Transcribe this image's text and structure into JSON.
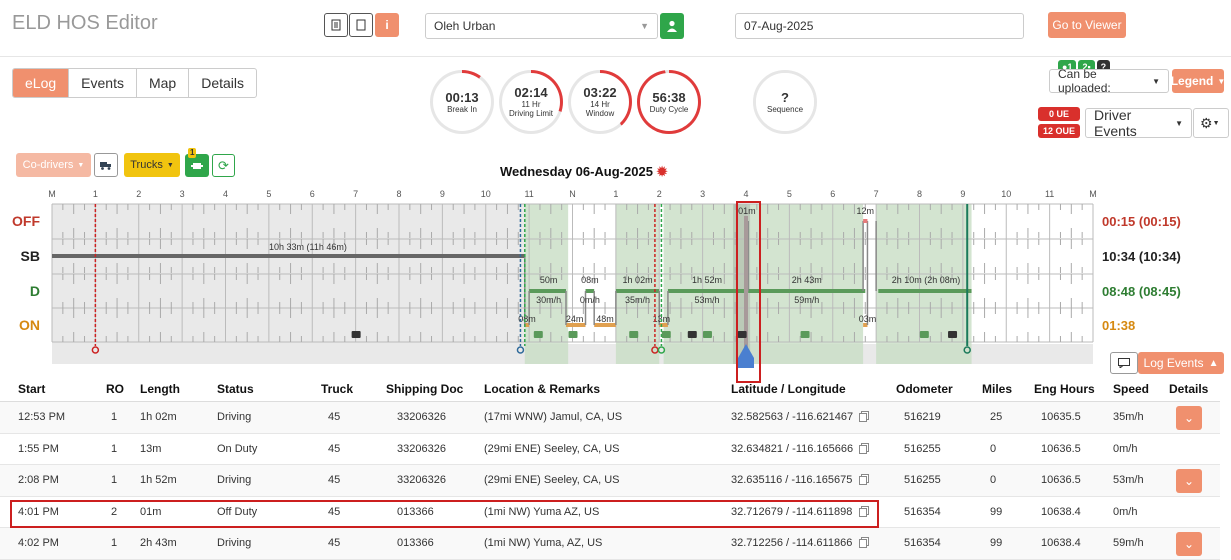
{
  "app_title": "ELD HOS Editor",
  "driver": {
    "name": "Oleh Urban"
  },
  "date_value": "07-Aug-2025",
  "go_to_viewer": "Go to Viewer",
  "info_icon": "i",
  "tabs": [
    {
      "label": "eLog",
      "active": true
    },
    {
      "label": "Events"
    },
    {
      "label": "Map"
    },
    {
      "label": "Details"
    }
  ],
  "gauges": [
    {
      "value": "00:13",
      "label1": "Break In",
      "label2": "",
      "fraction": 0.1,
      "color": "#e03b3b"
    },
    {
      "value": "02:14",
      "label1": "11 Hr",
      "label2": "Driving Limit",
      "fraction": 0.3,
      "color": "#e03b3b"
    },
    {
      "value": "03:22",
      "label1": "14 Hr",
      "label2": "Window",
      "fraction": 0.38,
      "color": "#e03b3b"
    },
    {
      "value": "56:38",
      "label1": "Duty Cycle",
      "label2": "",
      "fraction": 0.98,
      "color": "#e03b3b"
    },
    {
      "value": "?",
      "label1": "Sequence",
      "label2": "",
      "fraction": 0,
      "color": "#e03b3b"
    }
  ],
  "upload": {
    "label": "Can be uploaded:",
    "badge1": "1",
    "badge2": "2",
    "badge3": "?"
  },
  "legend": "Legend",
  "ue_badge": "0 UE",
  "oue_badge": "12 OUE",
  "driver_events": "Driver Events",
  "codrivers": "Co-drivers",
  "trucks": "Trucks",
  "truck_badge": "1",
  "day_title": "Wednesday 06-Aug-2025",
  "hour_labels": [
    "M",
    "1",
    "2",
    "3",
    "4",
    "5",
    "6",
    "7",
    "8",
    "9",
    "10",
    "11",
    "N",
    "1",
    "2",
    "3",
    "4",
    "5",
    "6",
    "7",
    "8",
    "9",
    "10",
    "11",
    "M"
  ],
  "status_rows": [
    {
      "label": "OFF",
      "color": "#c0392b",
      "total": "00:15 (00:15)"
    },
    {
      "label": "SB",
      "color": "#222222",
      "total": "10:34 (10:34)"
    },
    {
      "label": "D",
      "color": "#2e7d32",
      "total": "08:48 (08:45)"
    },
    {
      "label": "ON",
      "color": "#d68910",
      "total": "01:38"
    }
  ],
  "graph_labels": {
    "sb_main": "10h 33m (11h 46m)",
    "d_50m": "50m",
    "d_08m": "08m",
    "d_1h02m": "1h 02m",
    "d_1h52m": "1h 52m",
    "d_2h43m": "2h 43m",
    "d_2h10m": "2h 10m (2h 08m)",
    "s_30": "30m/h",
    "s_0": "0m/h",
    "s_35": "35m/h",
    "s_53": "53m/h",
    "s_59": "59m/h",
    "on_08": "08m",
    "on_24": "24m",
    "on_48": "48m",
    "on_13": "13m",
    "on_03": "03m",
    "off_01": "01m",
    "off_12": "12m"
  },
  "log_events_btn": "Log Events",
  "table": {
    "headers": [
      "Start",
      "RO",
      "Length",
      "Status",
      "Truck",
      "Shipping Doc",
      "Location & Remarks",
      "Latitude / Longitude",
      "Odometer",
      "Miles",
      "Eng Hours",
      "Speed",
      "Details"
    ],
    "rows": [
      {
        "start": "12:53 PM",
        "ro": "1",
        "length": "1h 02m",
        "status": "Driving",
        "truck": "45",
        "doc": "33206326",
        "loc": "(17mi WNW) Jamul, CA, US",
        "latlng": "32.582563 / -116.621467",
        "odo": "516219",
        "miles": "25",
        "eng": "10635.5",
        "speed": "35m/h",
        "details": true
      },
      {
        "start": "1:55 PM",
        "ro": "1",
        "length": "13m",
        "status": "On Duty",
        "truck": "45",
        "doc": "33206326",
        "loc": "(29mi ENE) Seeley, CA, US",
        "latlng": "32.634821 / -116.165666",
        "odo": "516255",
        "miles": "0",
        "eng": "10636.5",
        "speed": "0m/h",
        "details": false
      },
      {
        "start": "2:08 PM",
        "ro": "1",
        "length": "1h 52m",
        "status": "Driving",
        "truck": "45",
        "doc": "33206326",
        "loc": "(29mi ENE) Seeley, CA, US",
        "latlng": "32.635116 / -116.165675",
        "odo": "516255",
        "miles": "0",
        "eng": "10636.5",
        "speed": "53m/h",
        "details": true
      },
      {
        "start": "4:01 PM",
        "ro": "2",
        "length": "01m",
        "status": "Off Duty",
        "truck": "45",
        "doc": "013366",
        "loc": "(1mi NW) Yuma AZ, US",
        "latlng": "32.712679 / -114.611898",
        "odo": "516354",
        "miles": "99",
        "eng": "10638.4",
        "speed": "0m/h",
        "details": false
      },
      {
        "start": "4:02 PM",
        "ro": "1",
        "length": "2h 43m",
        "status": "Driving",
        "truck": "45",
        "doc": "013366",
        "loc": "(1mi NW) Yuma, AZ, US",
        "latlng": "32.712256 / -114.611866",
        "odo": "516354",
        "miles": "99",
        "eng": "10638.4",
        "speed": "59m/h",
        "details": true
      }
    ]
  }
}
